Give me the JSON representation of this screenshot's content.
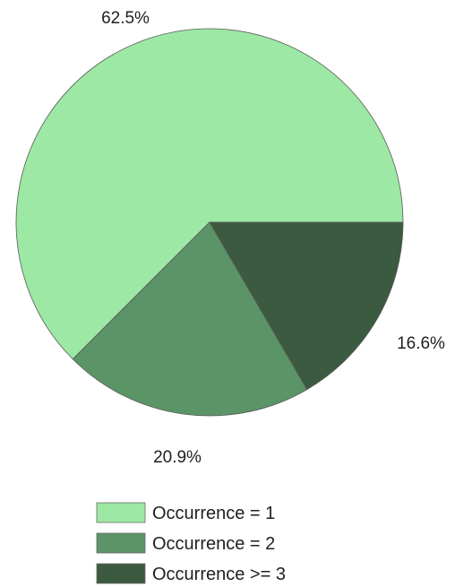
{
  "chart_data": {
    "type": "pie",
    "start_angle_deg": 0,
    "direction": "clockwise",
    "slices": [
      {
        "label": "Occurrence = 1",
        "value": 62.5,
        "value_label": "62.5%",
        "color": "#9de8a4"
      },
      {
        "label": "Occurrence = 2",
        "value": 20.9,
        "value_label": "20.9%",
        "color": "#5b9467"
      },
      {
        "label": "Occurrence >= 3",
        "value": 16.6,
        "value_label": "16.6%",
        "color": "#3b5a40"
      }
    ],
    "legend_position": "bottom"
  }
}
